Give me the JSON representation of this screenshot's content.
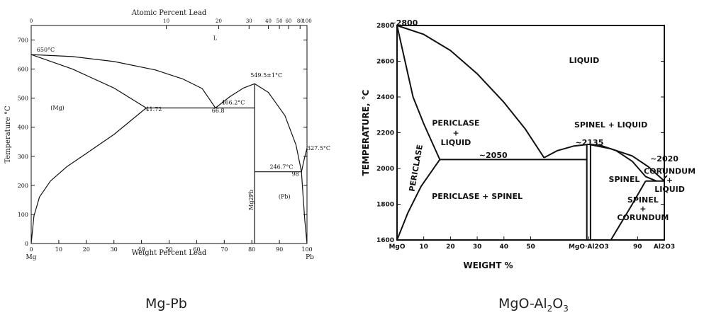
{
  "captions": {
    "left": {
      "main": "Mg-Pb"
    },
    "right": {
      "pre": "MgO-Al",
      "sub1": "2",
      "mid": "O",
      "sub2": "3"
    }
  },
  "chart_data": [
    {
      "type": "line",
      "title": "",
      "xlabel": "Weight Percent Lead",
      "x2label": "Atomic Percent Lead",
      "ylabel": "Temperature °C",
      "xlim": [
        0,
        100
      ],
      "ylim": [
        0,
        750
      ],
      "x_ticks": [
        "0",
        "10",
        "20",
        "30",
        "40",
        "50",
        "60",
        "70",
        "80",
        "90",
        "100"
      ],
      "y_ticks": [
        "0",
        "100",
        "200",
        "300",
        "400",
        "500",
        "600",
        "700"
      ],
      "x2_ticks": [
        {
          "at": 0,
          "label": "0"
        },
        {
          "at": 49,
          "label": "10"
        },
        {
          "at": 68,
          "label": "20"
        },
        {
          "at": 79,
          "label": "30"
        },
        {
          "at": 86,
          "label": "40"
        },
        {
          "at": 90,
          "label": "50"
        },
        {
          "at": 93.3,
          "label": "60"
        },
        {
          "at": 97.5,
          "label": "80"
        },
        {
          "at": 100,
          "label": "100"
        }
      ],
      "end_labels": {
        "left": "Mg",
        "right": "Pb"
      },
      "series": [
        {
          "points": [
            [
              0,
              650
            ],
            [
              15,
              643
            ],
            [
              30,
              626
            ],
            [
              45,
              597
            ],
            [
              55,
              566
            ],
            [
              62,
              533
            ],
            [
              66.8,
              466.2
            ]
          ]
        },
        {
          "points": [
            [
              0,
              650
            ],
            [
              15,
              600
            ],
            [
              30,
              535
            ],
            [
              41.7,
              466.2
            ]
          ]
        },
        {
          "points": [
            [
              0,
              0
            ],
            [
              1,
              95
            ],
            [
              3,
              160
            ],
            [
              7,
              215
            ],
            [
              13,
              265
            ],
            [
              20,
              310
            ],
            [
              30,
              375
            ],
            [
              41.7,
              466.2
            ]
          ]
        },
        {
          "points": [
            [
              41.7,
              466.2
            ],
            [
              81,
              466.2
            ]
          ]
        },
        {
          "points": [
            [
              66.8,
              466.2
            ],
            [
              72,
              505
            ],
            [
              77,
              535
            ],
            [
              81,
              549.5
            ],
            [
              86,
              520
            ],
            [
              92,
              440
            ],
            [
              96,
              340
            ],
            [
              97.5,
              270
            ],
            [
              98,
              246.7
            ]
          ]
        },
        {
          "points": [
            [
              81,
              0
            ],
            [
              81,
              549.5
            ]
          ]
        },
        {
          "points": [
            [
              81,
              246.7
            ],
            [
              98,
              246.7
            ]
          ]
        },
        {
          "points": [
            [
              98,
              246.7
            ],
            [
              99,
              290
            ],
            [
              100,
              327.5
            ]
          ]
        },
        {
          "points": [
            [
              98,
              246.7
            ],
            [
              98.6,
              160
            ],
            [
              99.2,
              80
            ],
            [
              100,
              0
            ]
          ]
        }
      ],
      "annotations": [
        {
          "x": 2,
          "y": 660,
          "text": "650°C"
        },
        {
          "x": 66,
          "y": 700,
          "text": "L"
        },
        {
          "x": 7,
          "y": 460,
          "text": "(Mg)"
        },
        {
          "x": 41.5,
          "y": 455,
          "text": "41.72"
        },
        {
          "x": 65.5,
          "y": 450,
          "text": "66.8"
        },
        {
          "x": 69,
          "y": 478,
          "text": "466.2°C"
        },
        {
          "x": 79.5,
          "y": 572,
          "text": "549.5±1°C"
        },
        {
          "x": 86.5,
          "y": 257,
          "text": "246.7°C"
        },
        {
          "x": 94.5,
          "y": 233,
          "text": "98"
        },
        {
          "x": 89.7,
          "y": 155,
          "text": "(Pb)"
        },
        {
          "x": 100,
          "y": 322,
          "text": "327.5°C"
        },
        {
          "x": 80.5,
          "y": 150,
          "text": "Mg2Pb",
          "rotate": -90
        }
      ]
    },
    {
      "type": "line",
      "title": "",
      "xlabel": "WEIGHT %",
      "ylabel": "TEMPERATURE, °C",
      "xlim": [
        0,
        100
      ],
      "ylim": [
        1600,
        2800
      ],
      "x_ticks": [
        {
          "at": 0,
          "label": "MgO"
        },
        {
          "at": 10,
          "label": "10"
        },
        {
          "at": 20,
          "label": "20"
        },
        {
          "at": 30,
          "label": "30"
        },
        {
          "at": 40,
          "label": "40"
        },
        {
          "at": 50,
          "label": "50"
        },
        {
          "at": 71.7,
          "label": "MgO·Al2O3"
        },
        {
          "at": 90,
          "label": "90"
        },
        {
          "at": 100,
          "label": "Al2O3"
        }
      ],
      "y_ticks": [
        "1600",
        "1800",
        "2000",
        "2200",
        "2400",
        "2600",
        "2800"
      ],
      "series": [
        {
          "points": [
            [
              0,
              2800
            ],
            [
              10,
              2750
            ],
            [
              20,
              2660
            ],
            [
              30,
              2530
            ],
            [
              40,
              2370
            ],
            [
              48,
              2220
            ],
            [
              55,
              2060
            ]
          ]
        },
        {
          "points": [
            [
              0,
              2800
            ],
            [
              3,
              2600
            ],
            [
              6,
              2400
            ],
            [
              10,
              2250
            ],
            [
              16,
              2050
            ]
          ]
        },
        {
          "points": [
            [
              0,
              1600
            ],
            [
              4,
              1750
            ],
            [
              9,
              1900
            ],
            [
              16,
              2050
            ]
          ]
        },
        {
          "points": [
            [
              16,
              2050
            ],
            [
              71,
              2050
            ]
          ]
        },
        {
          "points": [
            [
              55,
              2060
            ],
            [
              60,
              2100
            ],
            [
              66,
              2125
            ],
            [
              71.7,
              2135
            ],
            [
              76,
              2130
            ],
            [
              82,
              2100
            ],
            [
              88,
              2040
            ],
            [
              93,
              1955
            ],
            [
              97,
              1930
            ]
          ]
        },
        {
          "points": [
            [
              71.7,
              2135
            ],
            [
              80,
              2110
            ],
            [
              88,
              2070
            ],
            [
              94,
              2010
            ],
            [
              100,
              1930
            ]
          ]
        },
        {
          "points": [
            [
              71,
              1600
            ],
            [
              71,
              2135
            ]
          ]
        },
        {
          "points": [
            [
              72.4,
              1600
            ],
            [
              72.4,
              2135
            ]
          ]
        },
        {
          "points": [
            [
              93,
              1930
            ],
            [
              100,
              1930
            ]
          ]
        },
        {
          "points": [
            [
              80,
              1600
            ],
            [
              84,
              1700
            ],
            [
              88,
              1800
            ],
            [
              93,
              1930
            ]
          ]
        },
        {
          "points": [
            [
              100,
              1930
            ],
            [
              100,
              1945
            ],
            [
              101,
              1960
            ]
          ]
        }
      ],
      "annotations": [
        {
          "x": 2.5,
          "y": 2800,
          "text": "~2800"
        },
        {
          "x": 70,
          "y": 2590,
          "text": "LIQUID"
        },
        {
          "x": 22,
          "y": 2240,
          "text": "PERICLASE"
        },
        {
          "x": 22,
          "y": 2185,
          "text": "+"
        },
        {
          "x": 22,
          "y": 2130,
          "text": "LIQUID"
        },
        {
          "x": 8,
          "y": 2000,
          "text": "PERICLASE",
          "rotate": -80
        },
        {
          "x": 36,
          "y": 2060,
          "text": "~2050"
        },
        {
          "x": 80,
          "y": 2230,
          "text": "SPINEL + LIQUID"
        },
        {
          "x": 72,
          "y": 2130,
          "text": "~2135"
        },
        {
          "x": 85,
          "y": 1925,
          "text": "SPINEL"
        },
        {
          "x": 30,
          "y": 1830,
          "text": "PERICLASE + SPINEL"
        },
        {
          "x": 100,
          "y": 2040,
          "text": "~2020"
        },
        {
          "x": 102,
          "y": 1970,
          "text": "CORUNDUM"
        },
        {
          "x": 102,
          "y": 1920,
          "text": "+"
        },
        {
          "x": 102,
          "y": 1870,
          "text": "LIQUID"
        },
        {
          "x": 92,
          "y": 1810,
          "text": "SPINEL"
        },
        {
          "x": 92,
          "y": 1760,
          "text": "+"
        },
        {
          "x": 92,
          "y": 1710,
          "text": "CORUNDUM"
        }
      ]
    }
  ]
}
